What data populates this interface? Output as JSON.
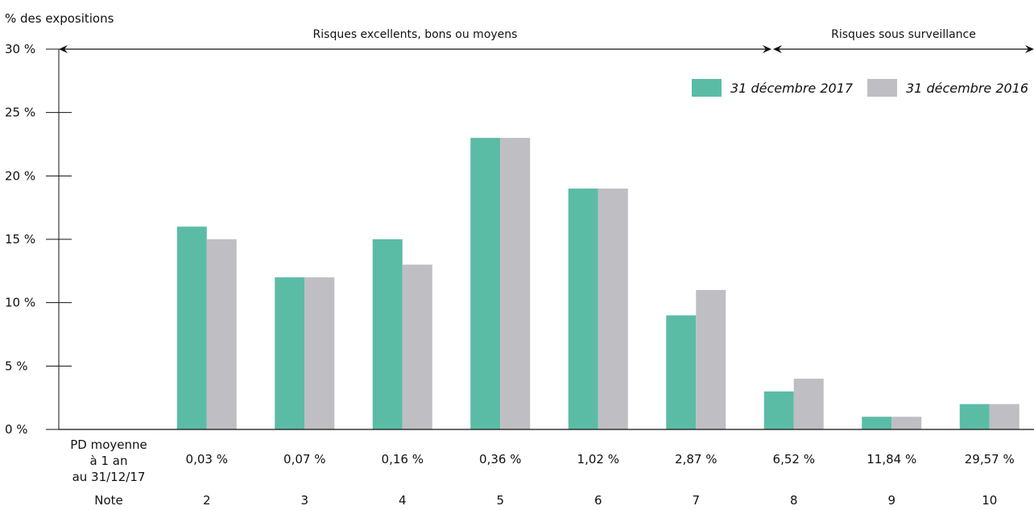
{
  "colors": {
    "s2017": "#5bbca6",
    "s2016": "#bebec3",
    "axis": "#111111"
  },
  "axis_title": "% des expositions",
  "legend": [
    {
      "label": "31 décembre 2017"
    },
    {
      "label": "31 décembre 2016"
    }
  ],
  "header": {
    "pd_label_lines": [
      "PD moyenne",
      "à 1 an",
      "au 31/12/17"
    ],
    "note_label": "Note"
  },
  "chart_data": {
    "type": "bar",
    "categories": [
      "2",
      "3",
      "4",
      "5",
      "6",
      "7",
      "8",
      "9",
      "10"
    ],
    "pd_values": [
      "0,03 %",
      "0,07 %",
      "0,16 %",
      "0,36 %",
      "1,02 %",
      "2,87 %",
      "6,52 %",
      "11,84 %",
      "29,57 %"
    ],
    "series": [
      {
        "name": "31 décembre 2017",
        "values": [
          16,
          12,
          15,
          23,
          19,
          9,
          3,
          1,
          2
        ]
      },
      {
        "name": "31 décembre 2016",
        "values": [
          15,
          12,
          13,
          23,
          19,
          11,
          4,
          1,
          2
        ]
      }
    ],
    "yticks": [
      "0 %",
      "5 %",
      "10 %",
      "15 %",
      "20 %",
      "25 %",
      "30 %"
    ],
    "ylim": [
      0,
      30
    ],
    "ranges": [
      {
        "label": "Risques excellents, bons ou moyens",
        "from": "2",
        "to": "7"
      },
      {
        "label": "Risques sous surveillance",
        "from": "8",
        "to": "10"
      }
    ]
  }
}
